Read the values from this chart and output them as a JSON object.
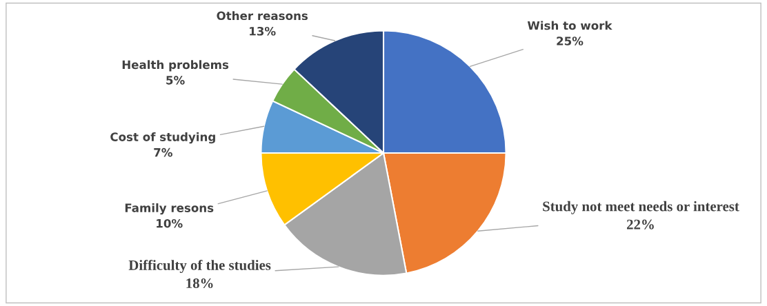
{
  "chart_data": {
    "type": "pie",
    "categories": [
      "Wish to work",
      "Study not meet needs or interest",
      "Difficulty of the studies",
      "Family resons",
      "Cost of studying",
      "Health problems",
      "Other reasons"
    ],
    "values": [
      25,
      22,
      18,
      10,
      7,
      5,
      13
    ],
    "colors": [
      "#4472c4",
      "#ed7d31",
      "#a5a5a5",
      "#ffc000",
      "#5b9bd5",
      "#70ad47",
      "#264478"
    ],
    "value_labels": [
      "25%",
      "22%",
      "18%",
      "10%",
      "7%",
      "5%",
      "13%"
    ]
  }
}
